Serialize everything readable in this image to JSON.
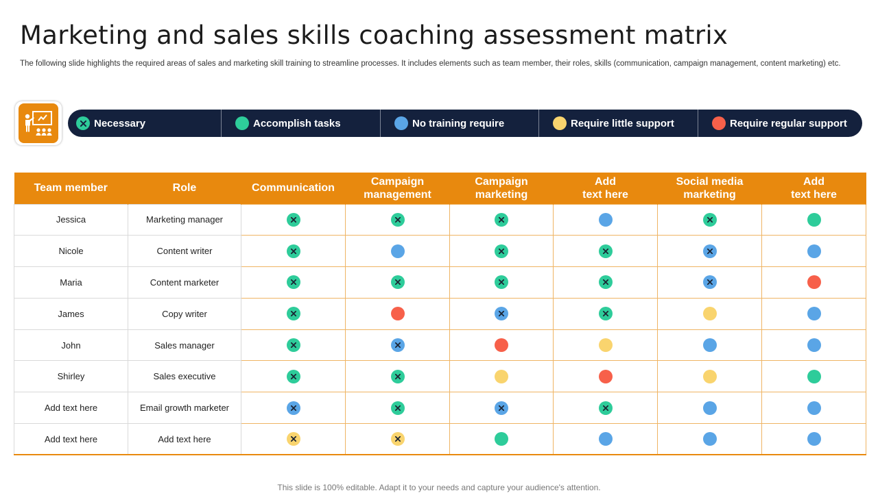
{
  "title": "Marketing and sales skills coaching assessment matrix",
  "subtitle": "The following slide highlights the required areas of sales and marketing skill training to streamline processes. It includes elements such as team member, their roles, skills (communication, campaign management, content marketing) etc.",
  "legend_icon": "presentation-training-icon",
  "legend": [
    {
      "key": "N",
      "label": "Necessary",
      "color": "#2ecc9a",
      "cross": true
    },
    {
      "key": "A",
      "label": "Accomplish tasks",
      "color": "#2ecc9a",
      "cross": false
    },
    {
      "key": "T",
      "label": "No training require",
      "color": "#5aa5e6",
      "cross": false
    },
    {
      "key": "L",
      "label": "Require little support",
      "color": "#f9d46e",
      "cross": false
    },
    {
      "key": "R",
      "label": "Require regular support",
      "color": "#f7604a",
      "cross": false
    }
  ],
  "status_styles": {
    "G": {
      "color": "#2ecc9a",
      "cross": true
    },
    "B": {
      "color": "#5aa5e6",
      "cross": true
    },
    "Y": {
      "color": "#f9d46e",
      "cross": true
    },
    "A": {
      "color": "#2ecc9a",
      "cross": false
    },
    "T": {
      "color": "#5aa5e6",
      "cross": false
    },
    "L": {
      "color": "#f9d46e",
      "cross": false
    },
    "R": {
      "color": "#f7604a",
      "cross": false
    }
  },
  "headers": [
    "Team member",
    "Role",
    "Communication",
    "Campaign\nmanagement",
    "Campaign\nmarketing",
    "Add\ntext here",
    "Social media\nmarketing",
    "Add\ntext here"
  ],
  "rows": [
    {
      "member": "Jessica",
      "role": "Marketing manager",
      "status": [
        "G",
        "G",
        "G",
        "T",
        "G",
        "A"
      ]
    },
    {
      "member": "Nicole",
      "role": "Content writer",
      "status": [
        "G",
        "T",
        "G",
        "G",
        "B",
        "T"
      ]
    },
    {
      "member": "Maria",
      "role": "Content marketer",
      "status": [
        "G",
        "G",
        "G",
        "G",
        "B",
        "R"
      ]
    },
    {
      "member": "James",
      "role": "Copy writer",
      "status": [
        "G",
        "R",
        "B",
        "G",
        "L",
        "T"
      ]
    },
    {
      "member": "John",
      "role": "Sales manager",
      "status": [
        "G",
        "B",
        "R",
        "L",
        "T",
        "T"
      ]
    },
    {
      "member": "Shirley",
      "role": "Sales executive",
      "status": [
        "G",
        "G",
        "L",
        "R",
        "L",
        "A"
      ]
    },
    {
      "member": "Add text here",
      "role": "Email growth marketer",
      "status": [
        "B",
        "G",
        "B",
        "G",
        "T",
        "T"
      ]
    },
    {
      "member": "Add text here",
      "role": "Add text here",
      "status": [
        "Y",
        "Y",
        "A",
        "T",
        "T",
        "T"
      ]
    }
  ],
  "footer": "This slide is 100% editable. Adapt it to your needs and capture your audience's attention."
}
